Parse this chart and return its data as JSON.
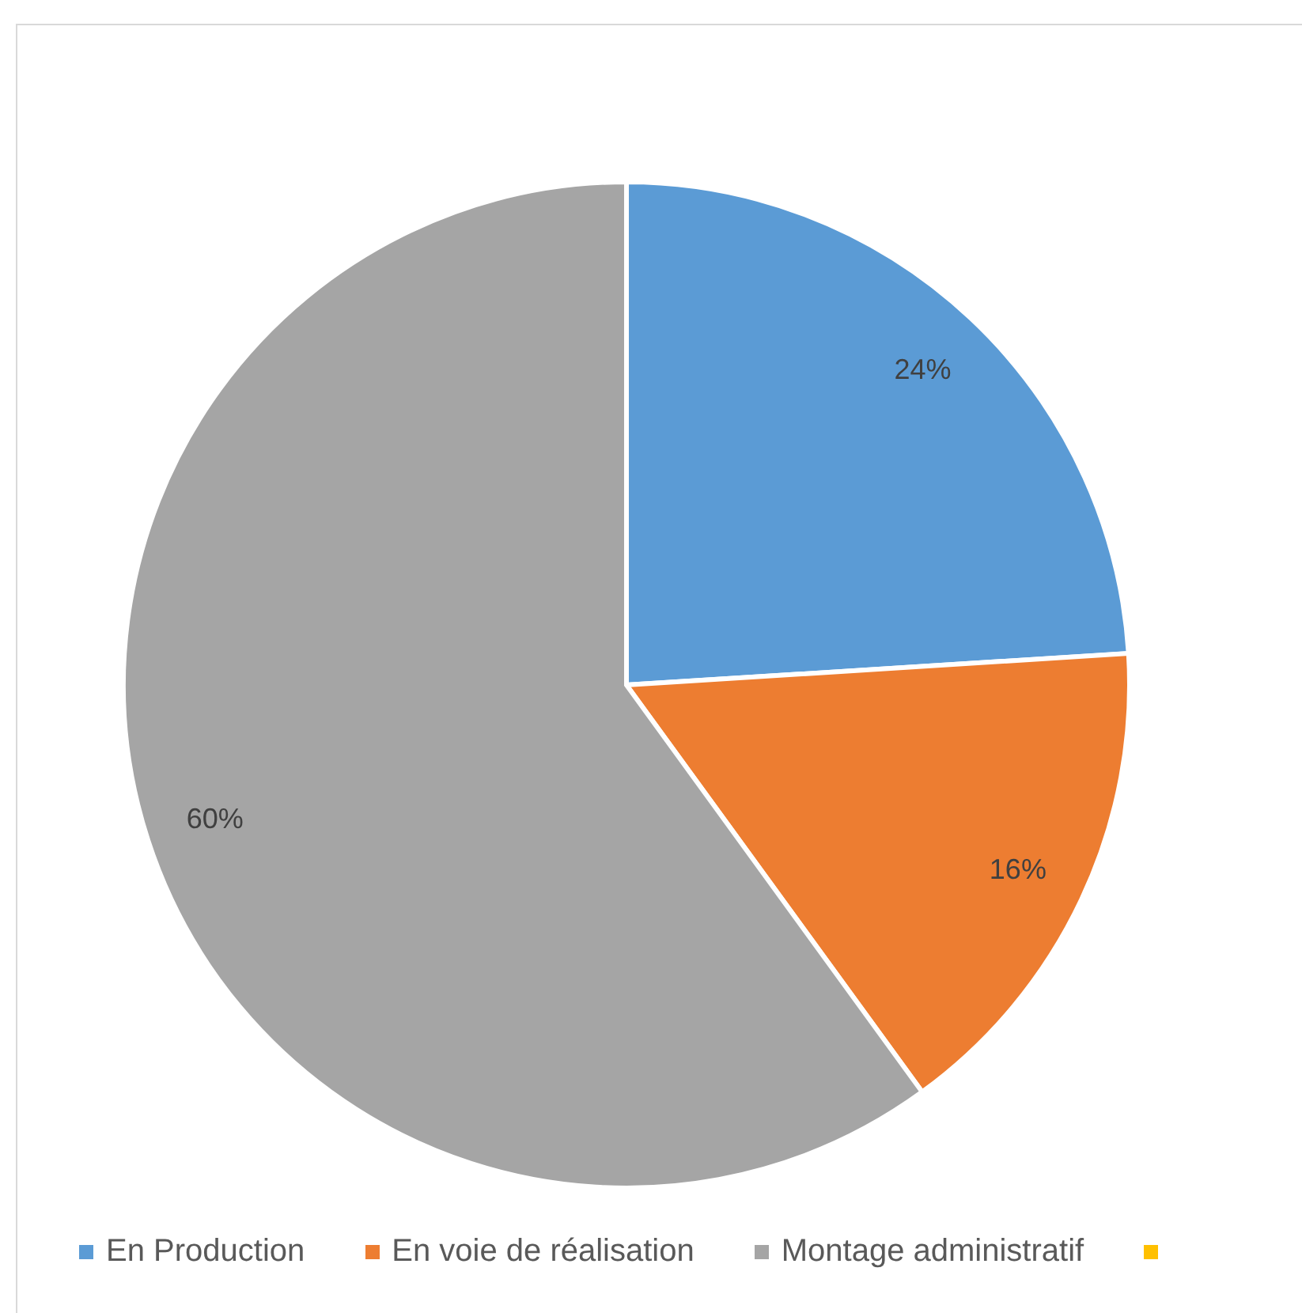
{
  "chart_data": {
    "type": "pie",
    "categories": [
      "En Production",
      "En voie de réalisation",
      "Montage administratif",
      null
    ],
    "values": [
      24,
      16,
      60,
      0
    ],
    "colors": [
      "#5b9bd5",
      "#ed7d31",
      "#a5a5a5",
      "#ffc000"
    ],
    "value_labels": [
      "24%",
      "16%",
      "60%",
      null
    ],
    "legend": "bottom"
  }
}
